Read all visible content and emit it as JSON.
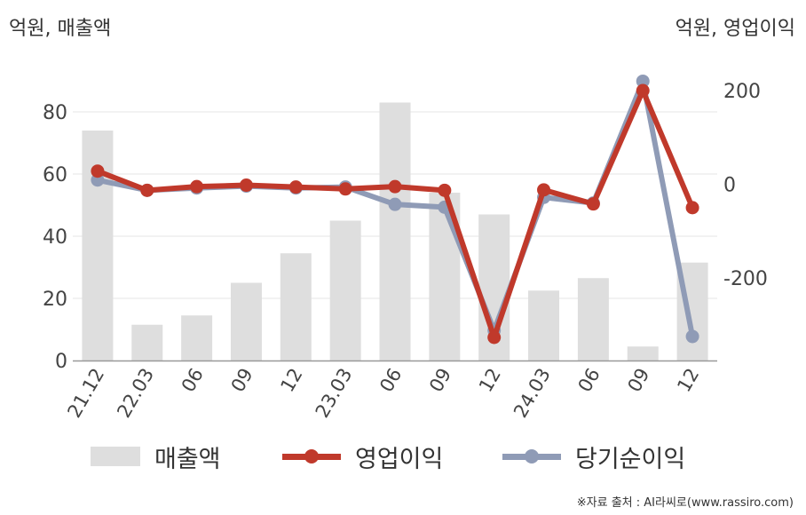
{
  "unit_left": "억원, 매출액",
  "unit_right": "억원, 영업이익",
  "source": "※자료 출처 : AI라씨로(www.rassiro.com)",
  "legend": {
    "revenue": "매출액",
    "op": "영업이익",
    "net": "당기순이익"
  },
  "colors": {
    "revenue": "#dedede",
    "op": "#c0392b",
    "net": "#8f9bb6",
    "axis": "#999999",
    "grid": "#e6e6e6",
    "tick_text": "#444444"
  },
  "chart_data": {
    "type": "bar+line",
    "categories": [
      "21.12",
      "22.03",
      "06",
      "09",
      "12",
      "23.03",
      "06",
      "09",
      "12",
      "24.03",
      "06",
      "09",
      "12"
    ],
    "left_axis": {
      "ylim": [
        0,
        90
      ],
      "ticks": [
        0,
        20,
        40,
        60,
        80
      ],
      "unit": "억원, 매출액"
    },
    "right_axis": {
      "ylim": [
        -380,
        255
      ],
      "ticks": [
        -200,
        0,
        200
      ],
      "unit": "억원, 영업이익"
    },
    "series": [
      {
        "name": "매출액",
        "type": "bar",
        "axis": "left",
        "values": [
          74,
          11.5,
          14.5,
          25,
          34.5,
          45,
          83,
          54,
          47,
          22.5,
          26.5,
          4.5,
          31.5
        ]
      },
      {
        "name": "당기순이익",
        "type": "line",
        "axis": "right",
        "values": [
          9,
          -13,
          -8,
          -4,
          -8,
          -6,
          -43,
          -49,
          -312,
          -28,
          -40,
          220,
          -325
        ]
      },
      {
        "name": "영업이익",
        "type": "line",
        "axis": "right",
        "values": [
          28,
          -13,
          -5,
          -2,
          -6,
          -10,
          -5,
          -13,
          -327,
          -12,
          -42,
          200,
          -50
        ]
      }
    ],
    "grid": true,
    "legend_position": "bottom"
  }
}
